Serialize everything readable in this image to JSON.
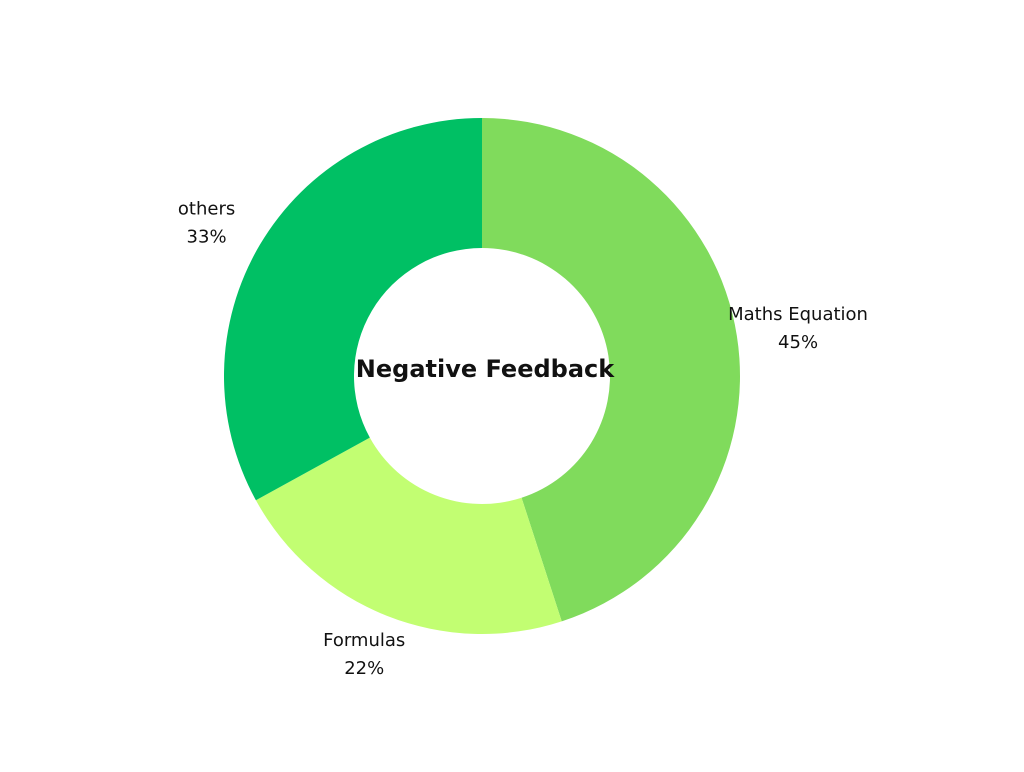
{
  "chart_data": {
    "type": "donut",
    "title": "Negative Feedback",
    "categories": [
      "Maths Equation",
      "Formulas",
      "others"
    ],
    "values": [
      45,
      22,
      33
    ],
    "value_labels": [
      "45%",
      "22%",
      "33%"
    ],
    "colors": [
      "#80db5c",
      "#c2fe72",
      "#00c064"
    ]
  }
}
